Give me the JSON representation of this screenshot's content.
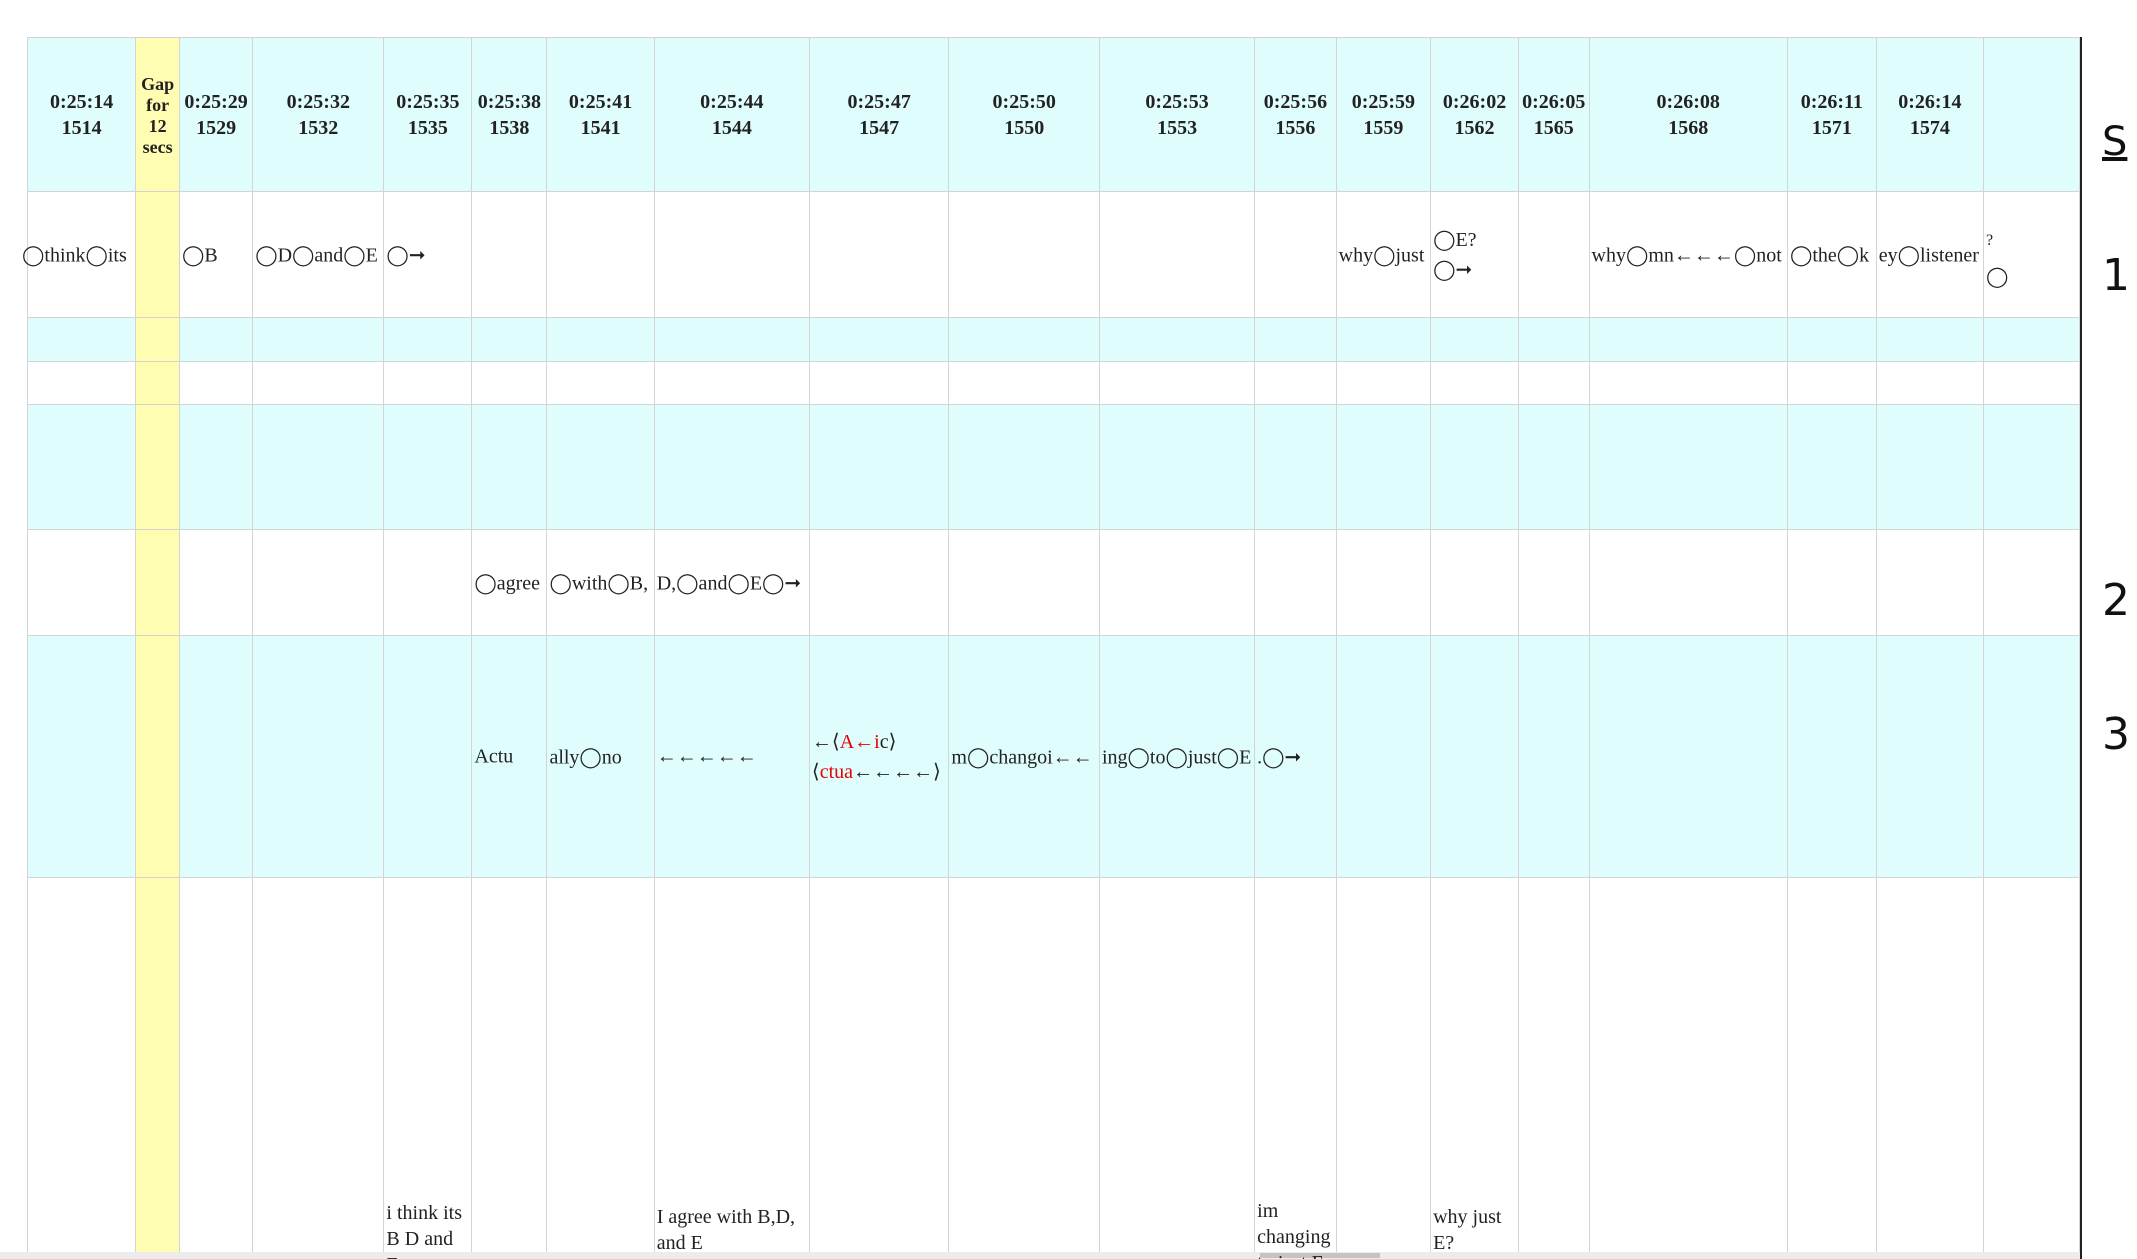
{
  "columns": [
    {
      "time": "0:25:14",
      "frame": "1514"
    },
    {
      "gap": "Gap for 12 secs"
    },
    {
      "time": "0:25:29",
      "frame": "1529"
    },
    {
      "time": "0:25:32",
      "frame": "1532"
    },
    {
      "time": "0:25:35",
      "frame": "1535"
    },
    {
      "time": "0:25:38",
      "frame": "1538"
    },
    {
      "time": "0:25:41",
      "frame": "1541"
    },
    {
      "time": "0:25:44",
      "frame": "1544"
    },
    {
      "time": "0:25:47",
      "frame": "1547"
    },
    {
      "time": "0:25:50",
      "frame": "1550"
    },
    {
      "time": "0:25:53",
      "frame": "1553"
    },
    {
      "time": "0:25:56",
      "frame": "1556"
    },
    {
      "time": "0:25:59",
      "frame": "1559"
    },
    {
      "time": "0:26:02",
      "frame": "1562"
    },
    {
      "time": "0:26:05",
      "frame": "1565"
    },
    {
      "time": "0:26:08",
      "frame": "1568"
    },
    {
      "time": "0:26:11",
      "frame": "1571"
    },
    {
      "time": "0:26:14",
      "frame": "1574"
    },
    {
      "time": "",
      "frame": ""
    }
  ],
  "row1": {
    "c0": "◯think◯its",
    "c2": "◯B",
    "c3": "◯D◯and◯E",
    "c4": "◯➞",
    "c12": "why◯just",
    "c13_top": "◯E?",
    "c13_bottom": "◯➞",
    "c15": "why◯mn←←←◯not",
    "c16": "◯the◯k",
    "c17": "ey◯listener",
    "c18_top": "?",
    "c18": "◯"
  },
  "row4": {
    "c5": "◯agree",
    "c6": "◯with◯B,",
    "c7": "D,◯and◯E◯➞"
  },
  "row5": {
    "c5": "Actu",
    "c6": "ally◯no",
    "c7": "←←←←←",
    "c8_top_a": "←⟨",
    "c8_top_b": "A←i",
    "c8_top_c": "c⟩",
    "c8_bot_a": "⟨",
    "c8_bot_b": "ctua",
    "c8_bot_c": "←←←←⟩",
    "c9": "m◯changoi←←",
    "c10": "ing◯to◯just◯E",
    "c11": ".◯➞"
  },
  "row6": {
    "c4": "i think its\nB D and\nE",
    "c7": "I agree with B,D,\nand E",
    "c11": "im\nchanging\nto just E",
    "c13": "why just\nE?"
  },
  "side_panel": {
    "title": "S",
    "items": [
      "1",
      "2",
      "3"
    ]
  },
  "colors": {
    "cyan_row": "#dffdfd",
    "gap_column": "#fffdb2",
    "highlight_text": "#e60000"
  }
}
